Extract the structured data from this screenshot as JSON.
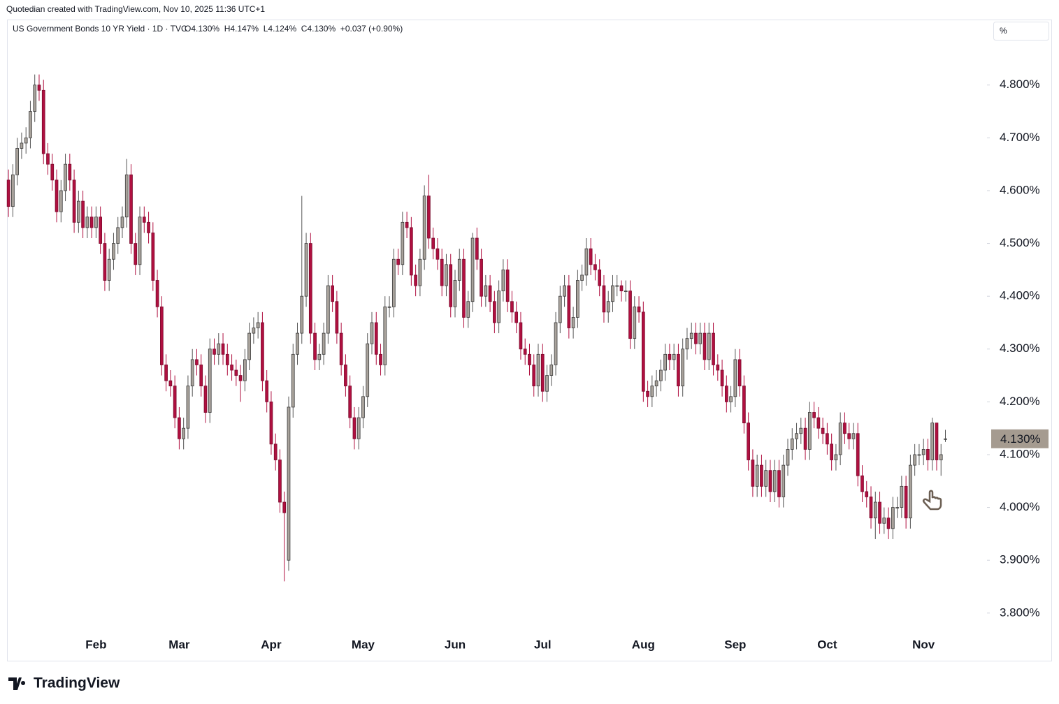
{
  "attribution": "Quotedian created with TradingView.com, Nov 10, 2025 11:36 UTC+1",
  "logo": "TradingView",
  "scale_button": "%",
  "chart_data": {
    "type": "candlestick",
    "title": "US Government Bonds 10 YR Yield · 1D · TVC",
    "ohlc_text": "O4.130%  H4.147%  L4.124%  C4.130%  +0.037 (+0.90%)",
    "up_color": "#a9a39c",
    "down_color": "#b01040",
    "xlim": [
      -0.5,
      223.5
    ],
    "xticks": [
      {
        "value": 20,
        "label": "Feb"
      },
      {
        "value": 39,
        "label": "Mar"
      },
      {
        "value": 60,
        "label": "Apr"
      },
      {
        "value": 81,
        "label": "May"
      },
      {
        "value": 102,
        "label": "Jun"
      },
      {
        "value": 122,
        "label": "Jul"
      },
      {
        "value": 145,
        "label": "Aug"
      },
      {
        "value": 166,
        "label": "Sep"
      },
      {
        "value": 187,
        "label": "Oct"
      },
      {
        "value": 209,
        "label": "Nov"
      }
    ],
    "ylim": [
      3.764,
      4.924
    ],
    "yticks": [
      {
        "value": 3.8,
        "label": "3.800%"
      },
      {
        "value": 3.9,
        "label": "3.900%"
      },
      {
        "value": 4.0,
        "label": "4.000%"
      },
      {
        "value": 4.1,
        "label": "4.100%"
      },
      {
        "value": 4.2,
        "label": "4.200%"
      },
      {
        "value": 4.3,
        "label": "4.300%"
      },
      {
        "value": 4.4,
        "label": "4.400%"
      },
      {
        "value": 4.5,
        "label": "4.500%"
      },
      {
        "value": 4.6,
        "label": "4.600%"
      },
      {
        "value": 4.7,
        "label": "4.700%"
      },
      {
        "value": 4.8,
        "label": "4.800%"
      }
    ],
    "last_price": {
      "value": 4.13,
      "label": "4.130%"
    },
    "open": [
      4.62,
      4.57,
      4.63,
      4.68,
      4.69,
      4.7,
      4.75,
      4.8,
      4.79,
      4.67,
      4.65,
      4.62,
      4.56,
      4.6,
      4.65,
      4.62,
      4.54,
      4.58,
      4.53,
      4.55,
      4.53,
      4.55,
      4.5,
      4.43,
      4.47,
      4.5,
      4.53,
      4.55,
      4.63,
      4.5,
      4.46,
      4.55,
      4.54,
      4.52,
      4.43,
      4.38,
      4.27,
      4.24,
      4.23,
      4.17,
      4.13,
      4.15,
      4.23,
      4.28,
      4.27,
      4.23,
      4.18,
      4.3,
      4.29,
      4.31,
      4.29,
      4.27,
      4.26,
      4.25,
      4.24,
      4.28,
      4.33,
      4.34,
      4.35,
      4.24,
      4.2,
      4.12,
      4.09,
      4.01,
      3.9,
      4.19,
      4.29,
      4.33,
      4.4,
      4.5,
      4.33,
      4.28,
      4.29,
      4.33,
      4.42,
      4.39,
      4.33,
      4.27,
      4.23,
      4.17,
      4.13,
      4.17,
      4.21,
      4.31,
      4.35,
      4.29,
      4.27,
      4.38,
      4.38,
      4.47,
      4.46,
      4.54,
      4.53,
      4.44,
      4.42,
      4.47,
      4.59,
      4.51,
      4.49,
      4.47,
      4.42,
      4.46,
      4.38,
      4.43,
      4.47,
      4.36,
      4.39,
      4.51,
      4.47,
      4.4,
      4.42,
      4.39,
      4.35,
      4.41,
      4.45,
      4.39,
      4.37,
      4.35,
      4.3,
      4.29,
      4.27,
      4.23,
      4.29,
      4.22,
      4.25,
      4.27,
      4.35,
      4.4,
      4.42,
      4.34,
      4.36,
      4.43,
      4.44,
      4.49,
      4.46,
      4.45,
      4.42,
      4.37,
      4.39,
      4.42,
      4.42,
      4.41,
      4.41,
      4.32,
      4.38,
      4.37,
      4.22,
      4.21,
      4.23,
      4.24,
      4.26,
      4.29,
      4.28,
      4.29,
      4.23,
      4.3,
      4.32,
      4.33,
      4.31,
      4.33,
      4.28,
      4.33,
      4.27,
      4.26,
      4.23,
      4.2,
      4.21,
      4.28,
      4.23,
      4.16,
      4.09,
      4.04,
      4.08,
      4.04,
      4.07,
      4.03,
      4.07,
      4.02,
      4.08,
      4.11,
      4.13,
      4.14,
      4.15,
      4.11,
      4.18,
      4.17,
      4.15,
      4.14,
      4.12,
      4.09,
      4.1,
      4.16,
      4.14,
      4.13,
      4.14,
      4.06,
      4.03,
      4.02,
      3.98,
      4.01,
      3.97,
      3.98,
      3.96,
      4.0,
      4.0,
      4.04,
      3.98,
      4.08,
      4.1,
      4.1,
      4.11,
      4.09,
      4.16,
      4.09,
      4.13
    ],
    "high": [
      4.64,
      4.65,
      4.7,
      4.71,
      4.72,
      4.77,
      4.82,
      4.82,
      4.81,
      4.69,
      4.67,
      4.64,
      4.62,
      4.67,
      4.67,
      4.64,
      4.6,
      4.6,
      4.57,
      4.57,
      4.57,
      4.57,
      4.52,
      4.49,
      4.52,
      4.55,
      4.57,
      4.66,
      4.65,
      4.52,
      4.57,
      4.57,
      4.56,
      4.54,
      4.45,
      4.4,
      4.29,
      4.26,
      4.25,
      4.19,
      4.17,
      4.25,
      4.3,
      4.3,
      4.29,
      4.25,
      4.32,
      4.32,
      4.33,
      4.33,
      4.31,
      4.29,
      4.28,
      4.27,
      4.3,
      4.35,
      4.36,
      4.37,
      4.37,
      4.26,
      4.22,
      4.14,
      4.11,
      4.03,
      4.21,
      4.31,
      4.35,
      4.59,
      4.52,
      4.52,
      4.35,
      4.31,
      4.35,
      4.44,
      4.44,
      4.41,
      4.35,
      4.29,
      4.25,
      4.19,
      4.19,
      4.23,
      4.33,
      4.37,
      4.37,
      4.31,
      4.4,
      4.4,
      4.49,
      4.49,
      4.56,
      4.56,
      4.55,
      4.46,
      4.49,
      4.61,
      4.63,
      4.53,
      4.51,
      4.49,
      4.48,
      4.48,
      4.45,
      4.49,
      4.49,
      4.41,
      4.52,
      4.53,
      4.49,
      4.44,
      4.44,
      4.41,
      4.43,
      4.47,
      4.47,
      4.41,
      4.39,
      4.37,
      4.32,
      4.31,
      4.29,
      4.31,
      4.31,
      4.27,
      4.29,
      4.37,
      4.42,
      4.44,
      4.44,
      4.38,
      4.45,
      4.46,
      4.51,
      4.51,
      4.48,
      4.47,
      4.44,
      4.41,
      4.44,
      4.44,
      4.43,
      4.43,
      4.43,
      4.4,
      4.4,
      4.39,
      4.24,
      4.25,
      4.26,
      4.28,
      4.31,
      4.31,
      4.31,
      4.31,
      4.32,
      4.34,
      4.35,
      4.35,
      4.35,
      4.35,
      4.35,
      4.35,
      4.29,
      4.28,
      4.25,
      4.23,
      4.3,
      4.3,
      4.25,
      4.18,
      4.11,
      4.1,
      4.1,
      4.09,
      4.09,
      4.09,
      4.09,
      4.1,
      4.13,
      4.15,
      4.16,
      4.17,
      4.17,
      4.2,
      4.2,
      4.19,
      4.17,
      4.16,
      4.14,
      4.12,
      4.18,
      4.18,
      4.16,
      4.16,
      4.16,
      4.08,
      4.05,
      4.04,
      4.03,
      4.03,
      4.0,
      4.0,
      4.02,
      4.02,
      4.06,
      4.06,
      4.1,
      4.12,
      4.12,
      4.13,
      4.13,
      4.17,
      4.16,
      4.12,
      4.147
    ],
    "low": [
      4.55,
      4.55,
      4.61,
      4.66,
      4.67,
      4.68,
      4.73,
      4.77,
      4.65,
      4.63,
      4.6,
      4.54,
      4.54,
      4.58,
      4.6,
      4.52,
      4.52,
      4.51,
      4.51,
      4.51,
      4.51,
      4.48,
      4.41,
      4.41,
      4.45,
      4.48,
      4.51,
      4.53,
      4.48,
      4.44,
      4.44,
      4.52,
      4.5,
      4.41,
      4.36,
      4.25,
      4.22,
      4.21,
      4.15,
      4.11,
      4.11,
      4.13,
      4.21,
      4.25,
      4.21,
      4.16,
      4.16,
      4.27,
      4.27,
      4.27,
      4.25,
      4.24,
      4.23,
      4.2,
      4.22,
      4.26,
      4.31,
      4.32,
      4.22,
      4.18,
      4.1,
      4.07,
      3.99,
      3.86,
      3.88,
      4.17,
      4.27,
      4.31,
      4.38,
      4.31,
      4.26,
      4.26,
      4.27,
      4.31,
      4.37,
      4.31,
      4.25,
      4.21,
      4.15,
      4.11,
      4.11,
      4.15,
      4.19,
      4.29,
      4.27,
      4.25,
      4.25,
      4.36,
      4.36,
      4.44,
      4.44,
      4.51,
      4.42,
      4.4,
      4.4,
      4.45,
      4.49,
      4.47,
      4.45,
      4.4,
      4.4,
      4.36,
      4.36,
      4.41,
      4.34,
      4.34,
      4.37,
      4.45,
      4.38,
      4.38,
      4.37,
      4.33,
      4.33,
      4.39,
      4.37,
      4.35,
      4.33,
      4.28,
      4.27,
      4.25,
      4.21,
      4.21,
      4.2,
      4.2,
      4.23,
      4.25,
      4.33,
      4.38,
      4.32,
      4.32,
      4.34,
      4.41,
      4.42,
      4.44,
      4.43,
      4.4,
      4.35,
      4.35,
      4.37,
      4.4,
      4.39,
      4.39,
      4.3,
      4.3,
      4.35,
      4.2,
      4.19,
      4.19,
      4.21,
      4.22,
      4.24,
      4.26,
      4.26,
      4.21,
      4.21,
      4.28,
      4.3,
      4.29,
      4.29,
      4.26,
      4.26,
      4.25,
      4.24,
      4.21,
      4.18,
      4.18,
      4.19,
      4.21,
      4.14,
      4.07,
      4.02,
      4.02,
      4.02,
      4.02,
      4.01,
      4.01,
      4.0,
      4.0,
      4.06,
      4.09,
      4.11,
      4.12,
      4.09,
      4.09,
      4.15,
      4.13,
      4.12,
      4.1,
      4.07,
      4.07,
      4.08,
      4.12,
      4.11,
      4.11,
      4.04,
      4.01,
      4.0,
      3.96,
      3.94,
      3.95,
      3.95,
      3.94,
      3.94,
      3.98,
      3.98,
      3.96,
      3.96,
      4.06,
      4.08,
      4.08,
      4.07,
      4.07,
      4.07,
      4.06,
      4.124
    ],
    "close": [
      4.57,
      4.63,
      4.68,
      4.69,
      4.7,
      4.75,
      4.8,
      4.79,
      4.67,
      4.65,
      4.62,
      4.56,
      4.6,
      4.65,
      4.62,
      4.54,
      4.58,
      4.53,
      4.55,
      4.53,
      4.55,
      4.5,
      4.43,
      4.47,
      4.5,
      4.53,
      4.55,
      4.63,
      4.5,
      4.46,
      4.55,
      4.54,
      4.52,
      4.43,
      4.38,
      4.27,
      4.24,
      4.23,
      4.17,
      4.13,
      4.15,
      4.23,
      4.28,
      4.27,
      4.23,
      4.18,
      4.3,
      4.29,
      4.31,
      4.29,
      4.27,
      4.26,
      4.25,
      4.24,
      4.28,
      4.33,
      4.34,
      4.35,
      4.24,
      4.2,
      4.12,
      4.09,
      4.01,
      3.99,
      4.19,
      4.29,
      4.33,
      4.4,
      4.5,
      4.33,
      4.28,
      4.29,
      4.33,
      4.42,
      4.39,
      4.33,
      4.27,
      4.23,
      4.17,
      4.13,
      4.17,
      4.21,
      4.31,
      4.35,
      4.29,
      4.27,
      4.38,
      4.38,
      4.47,
      4.46,
      4.54,
      4.53,
      4.44,
      4.42,
      4.47,
      4.59,
      4.51,
      4.49,
      4.47,
      4.42,
      4.46,
      4.38,
      4.43,
      4.47,
      4.36,
      4.39,
      4.51,
      4.47,
      4.4,
      4.42,
      4.39,
      4.35,
      4.41,
      4.45,
      4.39,
      4.37,
      4.35,
      4.3,
      4.29,
      4.27,
      4.23,
      4.29,
      4.22,
      4.25,
      4.27,
      4.35,
      4.4,
      4.42,
      4.34,
      4.36,
      4.43,
      4.44,
      4.49,
      4.46,
      4.45,
      4.42,
      4.37,
      4.39,
      4.42,
      4.42,
      4.41,
      4.41,
      4.32,
      4.38,
      4.37,
      4.22,
      4.21,
      4.23,
      4.24,
      4.26,
      4.29,
      4.28,
      4.29,
      4.23,
      4.3,
      4.32,
      4.33,
      4.31,
      4.33,
      4.28,
      4.33,
      4.27,
      4.26,
      4.23,
      4.2,
      4.21,
      4.28,
      4.23,
      4.16,
      4.09,
      4.04,
      4.08,
      4.04,
      4.07,
      4.03,
      4.07,
      4.02,
      4.08,
      4.11,
      4.13,
      4.14,
      4.15,
      4.11,
      4.18,
      4.17,
      4.15,
      4.14,
      4.12,
      4.09,
      4.1,
      4.16,
      4.14,
      4.13,
      4.14,
      4.06,
      4.03,
      4.02,
      3.98,
      4.01,
      3.97,
      3.98,
      3.96,
      4.0,
      4.0,
      4.04,
      3.98,
      4.08,
      4.1,
      4.1,
      4.11,
      4.09,
      4.16,
      4.09,
      4.1,
      4.13
    ]
  }
}
